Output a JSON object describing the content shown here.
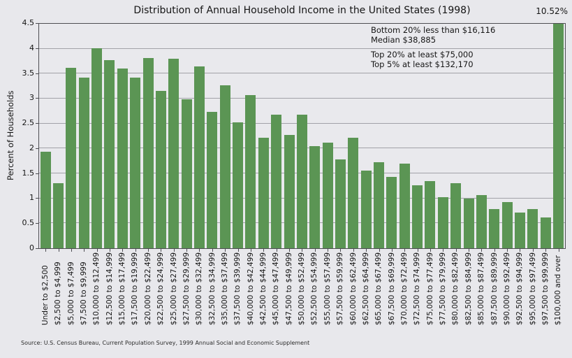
{
  "title": "Distribution of Annual Household Income in the United States (1998)",
  "outlier_label": "10.52%",
  "annotation_block1": {
    "line1": "Bottom 20% less than $16,116",
    "line2": "Median $38,885"
  },
  "annotation_block2": {
    "line1": "Top 20% at least $75,000",
    "line2": "Top 5% at least $132,170"
  },
  "source": "Source: U.S. Census Bureau, Current Population Survey, 1999 Annual Social and Economic Supplement",
  "colors": {
    "bar": "#5b9554",
    "background": "#e8e8ec",
    "gridline": "#a2a2a8",
    "axis_border": "#4d4d52"
  },
  "chart_data": {
    "type": "bar",
    "title": "Distribution of Annual Household Income in the United States (1998)",
    "xlabel": "",
    "ylabel": "Percent of Households",
    "ylim": [
      0,
      4.5
    ],
    "ytick_step": 0.5,
    "grid": true,
    "legend_position": "none",
    "bar_color": "#5b9554",
    "annotations": [
      "Bottom 20% less than $16,116",
      "Median $38,885",
      "Top 20% at least $75,000",
      "Top 5% at least $132,170",
      "10.52%"
    ],
    "note": "Last bar ($100,000 and over, 10.52%) is clipped at the 4.5 axis maximum and labeled above the plot.",
    "categories": [
      "Under to $2,500",
      "$2,500 to $4,999",
      "$5,000 to $7,499",
      "$7,500 to $9,999",
      "$10,000 to $12,499",
      "$12,500 to $14,999",
      "$15,000 to $17,499",
      "$17,500 to $19,999",
      "$20,000 to $22,499",
      "$22,500 to $24,999",
      "$25,000 to $27,499",
      "$27,500 to $29,999",
      "$30,000 to $32,499",
      "$32,500 to $34,999",
      "$35,000 to $37,499",
      "$37,500 to $39,999",
      "$40,000 to $42,499",
      "$42,500 to $44,999",
      "$45,000 to $47,499",
      "$47,500 to $49,999",
      "$50,000 to $52,499",
      "$52,500 to $54,999",
      "$55,000 to $57,499",
      "$57,500 to $59,999",
      "$60,000 to $62,499",
      "$62,500 to $64,999",
      "$65,000 to $67,499",
      "$67,500 to $69,999",
      "$70,000 to $72,499",
      "$72,500 to $74,999",
      "$75,000 to $77,499",
      "$77,500 to $79,999",
      "$80,000 to $82,499",
      "$82,500 to $84,999",
      "$85,000 to $87,499",
      "$87,500 to $89,999",
      "$90,000 to $92,499",
      "$92,500 to $94,999",
      "$95,000 to $97,499",
      "$97,500 to $99,999",
      "$100,000 and over"
    ],
    "values": [
      1.93,
      1.3,
      3.62,
      3.42,
      4.01,
      3.77,
      3.61,
      3.42,
      3.82,
      3.16,
      3.8,
      2.98,
      3.65,
      2.73,
      3.27,
      2.52,
      3.07,
      2.21,
      2.68,
      2.27,
      2.68,
      2.05,
      2.12,
      1.78,
      2.21,
      1.55,
      1.72,
      1.43,
      1.69,
      1.26,
      1.34,
      1.03,
      1.31,
      0.99,
      1.07,
      0.78,
      0.93,
      0.72,
      0.79,
      0.62,
      10.52
    ]
  }
}
